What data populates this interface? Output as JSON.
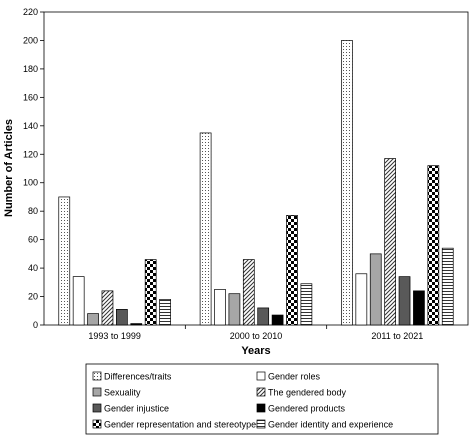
{
  "chart_data": {
    "type": "bar",
    "title": "",
    "xlabel": "Years",
    "ylabel": "Number of Articles",
    "ylim": [
      0,
      220
    ],
    "yticks": [
      0,
      20,
      40,
      60,
      80,
      100,
      120,
      140,
      160,
      180,
      200,
      220
    ],
    "grid": false,
    "legend_position": "bottom",
    "categories": [
      "1993 to 1999",
      "2000 to 2010",
      "2011 to 2021"
    ],
    "series": [
      {
        "name": "Differences/traits",
        "values": [
          90,
          135,
          200
        ],
        "pattern": "dots",
        "color": "#ffffff"
      },
      {
        "name": "Gender roles",
        "values": [
          34,
          25,
          36
        ],
        "pattern": "solid",
        "color": "#ffffff"
      },
      {
        "name": "Sexuality",
        "values": [
          8,
          22,
          50
        ],
        "pattern": "solid",
        "color": "#a6a6a6"
      },
      {
        "name": "The gendered body",
        "values": [
          24,
          46,
          117
        ],
        "pattern": "diagonal-stripes",
        "color": "#ffffff"
      },
      {
        "name": "Gender injustice",
        "values": [
          11,
          12,
          34
        ],
        "pattern": "solid",
        "color": "#595959"
      },
      {
        "name": "Gendered products",
        "values": [
          1,
          7,
          24
        ],
        "pattern": "solid",
        "color": "#000000"
      },
      {
        "name": "Gender representation and stereotypes",
        "values": [
          46,
          77,
          112
        ],
        "pattern": "checker",
        "color": "#000000"
      },
      {
        "name": "Gender identity and experience",
        "values": [
          18,
          29,
          54
        ],
        "pattern": "horizontal-stripes",
        "color": "#ffffff"
      }
    ]
  }
}
